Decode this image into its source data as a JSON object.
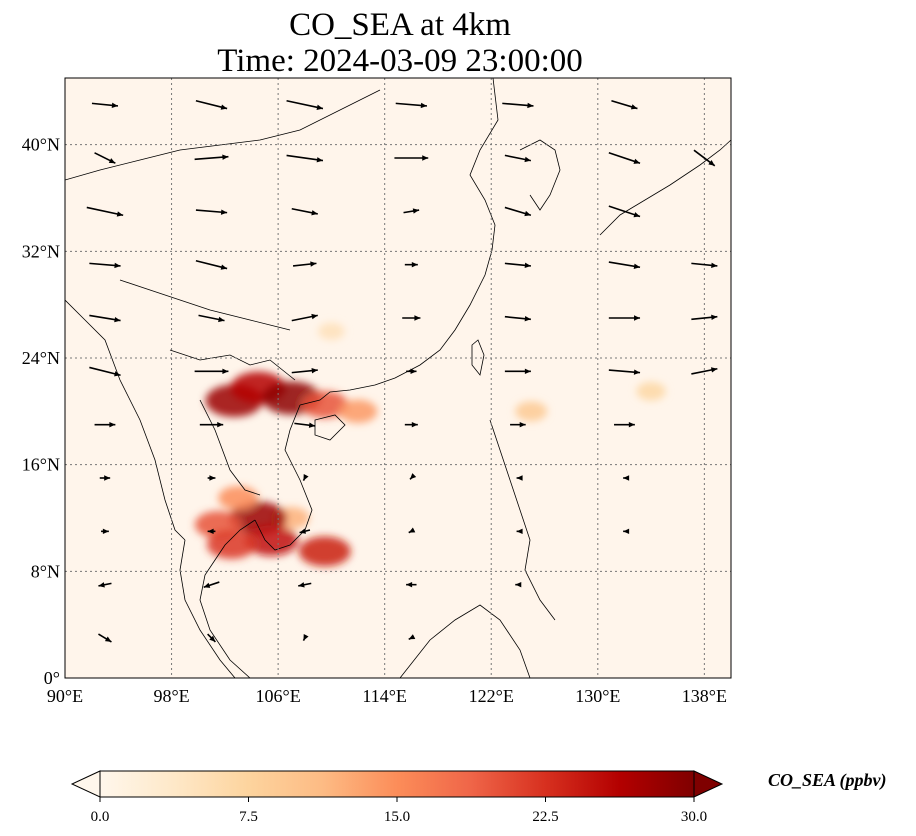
{
  "title_line1": "CO_SEA at 4km",
  "title_line2": "Time: 2024-03-09 23:00:00",
  "map": {
    "lon_range": [
      90,
      140
    ],
    "lat_range": [
      0,
      45
    ],
    "lon_ticks": [
      {
        "value": 90,
        "label": "90°E"
      },
      {
        "value": 98,
        "label": "98°E"
      },
      {
        "value": 106,
        "label": "106°E"
      },
      {
        "value": 114,
        "label": "114°E"
      },
      {
        "value": 122,
        "label": "122°E"
      },
      {
        "value": 130,
        "label": "130°E"
      },
      {
        "value": 138,
        "label": "138°E"
      }
    ],
    "lat_ticks": [
      {
        "value": 0,
        "label": "0°"
      },
      {
        "value": 8,
        "label": "8°N"
      },
      {
        "value": 16,
        "label": "16°N"
      },
      {
        "value": 24,
        "label": "24°N"
      },
      {
        "value": 32,
        "label": "32°N"
      },
      {
        "value": 40,
        "label": "40°N"
      }
    ],
    "gridlines": "dotted",
    "background_color": "#fff5eb"
  },
  "colorbar": {
    "label": "CO_SEA (ppbv)",
    "min": 0.0,
    "max": 30.0,
    "ticks": [
      "0.0",
      "7.5",
      "15.0",
      "22.5",
      "30.0"
    ],
    "colormap": "OrRd",
    "colors": [
      "#fff7ec",
      "#fee8c8",
      "#fdd49e",
      "#fdbb84",
      "#fc8d59",
      "#ef6548",
      "#d7301f",
      "#b30000",
      "#7f0000"
    ],
    "extend": "both"
  },
  "chart_data": {
    "type": "map",
    "variable": "CO_SEA",
    "units": "ppbv",
    "level": "4km",
    "time": "2024-03-09 23:00:00",
    "plumes": [
      {
        "lon": 102.7,
        "lat": 20.8,
        "value": 28
      },
      {
        "lon": 104.5,
        "lat": 21.8,
        "value": 26
      },
      {
        "lon": 107.0,
        "lat": 21.0,
        "value": 29
      },
      {
        "lon": 109.5,
        "lat": 20.5,
        "value": 20
      },
      {
        "lon": 112.0,
        "lat": 20.0,
        "value": 14
      },
      {
        "lon": 107.0,
        "lat": 12.0,
        "value": 12
      },
      {
        "lon": 104.5,
        "lat": 12.0,
        "value": 28
      },
      {
        "lon": 105.5,
        "lat": 10.3,
        "value": 25
      },
      {
        "lon": 109.5,
        "lat": 9.5,
        "value": 24
      },
      {
        "lon": 101.5,
        "lat": 11.5,
        "value": 20
      },
      {
        "lon": 102.5,
        "lat": 10.0,
        "value": 22
      },
      {
        "lon": 103.0,
        "lat": 13.5,
        "value": 15
      },
      {
        "lon": 125.0,
        "lat": 20.0,
        "value": 9
      },
      {
        "lon": 134.0,
        "lat": 21.5,
        "value": 7
      },
      {
        "lon": 110.0,
        "lat": 26.0,
        "value": 5
      }
    ],
    "wind_vectors": [
      {
        "lon": 93,
        "lat": 43,
        "u": 10,
        "v": -1
      },
      {
        "lon": 101,
        "lat": 43,
        "u": 12,
        "v": -3
      },
      {
        "lon": 108,
        "lat": 43,
        "u": 14,
        "v": -3
      },
      {
        "lon": 116,
        "lat": 43,
        "u": 12,
        "v": -1
      },
      {
        "lon": 124,
        "lat": 43,
        "u": 12,
        "v": -1
      },
      {
        "lon": 132,
        "lat": 43,
        "u": 10,
        "v": -3
      },
      {
        "lon": 93,
        "lat": 39,
        "u": 8,
        "v": -4
      },
      {
        "lon": 101,
        "lat": 39,
        "u": 13,
        "v": 1
      },
      {
        "lon": 108,
        "lat": 39,
        "u": 14,
        "v": -2
      },
      {
        "lon": 116,
        "lat": 39,
        "u": 13,
        "v": 0
      },
      {
        "lon": 124,
        "lat": 39,
        "u": 10,
        "v": -2
      },
      {
        "lon": 132,
        "lat": 39,
        "u": 12,
        "v": -4
      },
      {
        "lon": 138,
        "lat": 39,
        "u": 8,
        "v": -6
      },
      {
        "lon": 93,
        "lat": 35,
        "u": 14,
        "v": -3
      },
      {
        "lon": 101,
        "lat": 35,
        "u": 12,
        "v": -1
      },
      {
        "lon": 108,
        "lat": 35,
        "u": 10,
        "v": -2
      },
      {
        "lon": 116,
        "lat": 35,
        "u": 6,
        "v": 1
      },
      {
        "lon": 124,
        "lat": 35,
        "u": 10,
        "v": -3
      },
      {
        "lon": 132,
        "lat": 35,
        "u": 12,
        "v": -4
      },
      {
        "lon": 93,
        "lat": 31,
        "u": 12,
        "v": -1
      },
      {
        "lon": 101,
        "lat": 31,
        "u": 12,
        "v": -3
      },
      {
        "lon": 108,
        "lat": 31,
        "u": 9,
        "v": 1
      },
      {
        "lon": 116,
        "lat": 31,
        "u": 5,
        "v": 0
      },
      {
        "lon": 124,
        "lat": 31,
        "u": 10,
        "v": -1
      },
      {
        "lon": 132,
        "lat": 31,
        "u": 12,
        "v": -2
      },
      {
        "lon": 138,
        "lat": 31,
        "u": 10,
        "v": -1
      },
      {
        "lon": 93,
        "lat": 27,
        "u": 12,
        "v": -2
      },
      {
        "lon": 101,
        "lat": 27,
        "u": 10,
        "v": -2
      },
      {
        "lon": 108,
        "lat": 27,
        "u": 10,
        "v": 2
      },
      {
        "lon": 116,
        "lat": 27,
        "u": 7,
        "v": 0
      },
      {
        "lon": 124,
        "lat": 27,
        "u": 10,
        "v": -1
      },
      {
        "lon": 132,
        "lat": 27,
        "u": 12,
        "v": 0
      },
      {
        "lon": 138,
        "lat": 27,
        "u": 10,
        "v": 1
      },
      {
        "lon": 93,
        "lat": 23,
        "u": 12,
        "v": -3
      },
      {
        "lon": 101,
        "lat": 23,
        "u": 13,
        "v": 0
      },
      {
        "lon": 108,
        "lat": 23,
        "u": 10,
        "v": 1
      },
      {
        "lon": 116,
        "lat": 23,
        "u": 4,
        "v": 0
      },
      {
        "lon": 124,
        "lat": 23,
        "u": 10,
        "v": 0
      },
      {
        "lon": 132,
        "lat": 23,
        "u": 12,
        "v": -1
      },
      {
        "lon": 138,
        "lat": 23,
        "u": 10,
        "v": 2
      },
      {
        "lon": 93,
        "lat": 19,
        "u": 8,
        "v": 0
      },
      {
        "lon": 101,
        "lat": 19,
        "u": 9,
        "v": 0
      },
      {
        "lon": 108,
        "lat": 19,
        "u": 8,
        "v": -1
      },
      {
        "lon": 116,
        "lat": 19,
        "u": 5,
        "v": 0
      },
      {
        "lon": 124,
        "lat": 19,
        "u": 6,
        "v": 0
      },
      {
        "lon": 132,
        "lat": 19,
        "u": 8,
        "v": 0
      },
      {
        "lon": 93,
        "lat": 15,
        "u": 4,
        "v": 0
      },
      {
        "lon": 101,
        "lat": 15,
        "u": 3,
        "v": 0
      },
      {
        "lon": 108,
        "lat": 15,
        "u": -1,
        "v": -2
      },
      {
        "lon": 116,
        "lat": 15,
        "u": -1,
        "v": -1
      },
      {
        "lon": 124,
        "lat": 15,
        "u": -1,
        "v": 0
      },
      {
        "lon": 132,
        "lat": 15,
        "u": -1,
        "v": 0
      },
      {
        "lon": 93,
        "lat": 11,
        "u": 3,
        "v": 0
      },
      {
        "lon": 101,
        "lat": 11,
        "u": -3,
        "v": 0
      },
      {
        "lon": 108,
        "lat": 11,
        "u": -4,
        "v": -1
      },
      {
        "lon": 116,
        "lat": 11,
        "u": -2,
        "v": -1
      },
      {
        "lon": 124,
        "lat": 11,
        "u": -1,
        "v": 0
      },
      {
        "lon": 132,
        "lat": 11,
        "u": -1,
        "v": 0
      },
      {
        "lon": 93,
        "lat": 7,
        "u": -5,
        "v": -1
      },
      {
        "lon": 101,
        "lat": 7,
        "u": -6,
        "v": -2
      },
      {
        "lon": 108,
        "lat": 7,
        "u": -5,
        "v": -1
      },
      {
        "lon": 116,
        "lat": 7,
        "u": -4,
        "v": 0
      },
      {
        "lon": 124,
        "lat": 7,
        "u": -2,
        "v": 0
      },
      {
        "lon": 93,
        "lat": 3,
        "u": 5,
        "v": -3
      },
      {
        "lon": 101,
        "lat": 3,
        "u": 3,
        "v": -3
      },
      {
        "lon": 108,
        "lat": 3,
        "u": -1,
        "v": -2
      },
      {
        "lon": 116,
        "lat": 3,
        "u": -2,
        "v": -1
      }
    ]
  }
}
